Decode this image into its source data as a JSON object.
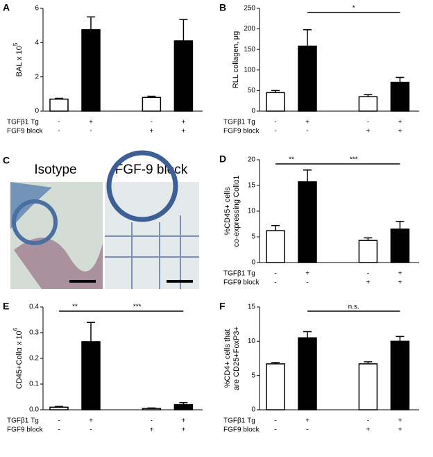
{
  "chart_data": [
    {
      "type": "bar",
      "label": "A",
      "ylabel": [
        "BAL x 10"
      ],
      "ylabel_sup": "5",
      "values": [
        0.7,
        4.75,
        0.8,
        4.1
      ],
      "errors": [
        0.05,
        0.75,
        0.07,
        1.25
      ],
      "colors": [
        "#ffffff",
        "#000000",
        "#ffffff",
        "#000000"
      ],
      "ylim": [
        0,
        6
      ],
      "yticks": [
        0,
        2,
        4,
        6
      ],
      "conditions": [
        {
          "name": "TGFβ1 Tg",
          "signs": [
            "-",
            "+",
            "-",
            "+"
          ]
        },
        {
          "name": "FGF9 block",
          "signs": [
            "-",
            "-",
            "+",
            "+"
          ]
        }
      ],
      "significance": []
    },
    {
      "type": "bar",
      "label": "B",
      "ylabel": [
        "RLL collagen, μg"
      ],
      "values": [
        45,
        158,
        35,
        70
      ],
      "errors": [
        5,
        40,
        5,
        12
      ],
      "colors": [
        "#ffffff",
        "#000000",
        "#ffffff",
        "#000000"
      ],
      "ylim": [
        0,
        250
      ],
      "yticks": [
        0,
        50,
        100,
        150,
        200,
        250
      ],
      "conditions": [
        {
          "name": "TGFβ1 Tg",
          "signs": [
            "-",
            "+",
            "-",
            "+"
          ]
        },
        {
          "name": "FGF9 block",
          "signs": [
            "-",
            "-",
            "+",
            "+"
          ]
        }
      ],
      "significance": [
        {
          "from": 1,
          "to": 3,
          "label": "*"
        }
      ]
    },
    {
      "type": "bar",
      "label": "D",
      "ylabel": [
        "%CD45+ cells",
        "co-expressing Collα1"
      ],
      "values": [
        6.2,
        15.7,
        4.3,
        6.5
      ],
      "errors": [
        1,
        2.3,
        0.5,
        1.5
      ],
      "colors": [
        "#ffffff",
        "#000000",
        "#ffffff",
        "#000000"
      ],
      "ylim": [
        0,
        20
      ],
      "yticks": [
        0,
        5,
        10,
        15,
        20
      ],
      "conditions": [
        {
          "name": "TGFβ1 Tg",
          "signs": [
            "-",
            "+",
            "-",
            "+"
          ]
        },
        {
          "name": "FGF9 block",
          "signs": [
            "-",
            "-",
            "+",
            "+"
          ]
        }
      ],
      "significance": [
        {
          "from": 0,
          "to": 1,
          "label": "**"
        },
        {
          "from": 1,
          "to": 3,
          "label": "***"
        }
      ]
    },
    {
      "type": "bar",
      "label": "E",
      "ylabel": [
        "CD45+Collα x 10"
      ],
      "ylabel_sup": "6",
      "values": [
        0.01,
        0.265,
        0.005,
        0.02
      ],
      "errors": [
        0.003,
        0.075,
        0.002,
        0.008
      ],
      "colors": [
        "#ffffff",
        "#000000",
        "#ffffff",
        "#000000"
      ],
      "ylim": [
        0,
        0.4
      ],
      "yticks": [
        {
          "value": 0,
          "label": "0.0"
        },
        0.1,
        0.2,
        0.3,
        0.4
      ],
      "conditions": [
        {
          "name": "TGFβ1 Tg",
          "signs": [
            "-",
            "+",
            "-",
            "+"
          ]
        },
        {
          "name": "FGF9 block",
          "signs": [
            "-",
            "-",
            "+",
            "+"
          ]
        }
      ],
      "significance": [
        {
          "from": 0,
          "to": 1,
          "label": "**"
        },
        {
          "from": 1,
          "to": 3,
          "label": "***"
        }
      ]
    },
    {
      "type": "bar",
      "label": "F",
      "ylabel": [
        "%CD4+ cells that",
        "are CD25+FoxP3+"
      ],
      "values": [
        6.7,
        10.5,
        6.7,
        10
      ],
      "errors": [
        0.2,
        0.9,
        0.3,
        0.7
      ],
      "colors": [
        "#ffffff",
        "#000000",
        "#ffffff",
        "#000000"
      ],
      "ylim": [
        0,
        15
      ],
      "yticks": [
        0,
        5,
        10,
        15
      ],
      "conditions": [
        {
          "name": "TGFβ1 Tg",
          "signs": [
            "-",
            "+",
            "-",
            "+"
          ]
        },
        {
          "name": "FGF9 block",
          "signs": [
            "-",
            "-",
            "+",
            "+"
          ]
        }
      ],
      "significance": [
        {
          "from": 1,
          "to": 3,
          "label": "n.s."
        }
      ]
    }
  ],
  "panel_c": {
    "label": "C",
    "images": [
      "Isotype",
      "FGF-9 block"
    ]
  }
}
